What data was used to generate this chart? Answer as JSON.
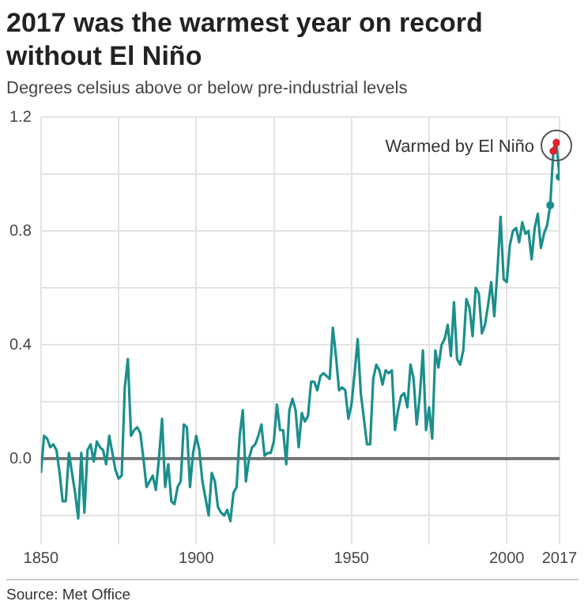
{
  "chart_data": {
    "type": "line",
    "title": "2017 was the warmest year on record without El Niño",
    "subtitle": "Degrees celsius above or below pre-industrial levels",
    "x": [
      1850,
      1851,
      1852,
      1853,
      1854,
      1855,
      1856,
      1857,
      1858,
      1859,
      1860,
      1861,
      1862,
      1863,
      1864,
      1865,
      1866,
      1867,
      1868,
      1869,
      1870,
      1871,
      1872,
      1873,
      1874,
      1875,
      1876,
      1877,
      1878,
      1879,
      1880,
      1881,
      1882,
      1883,
      1884,
      1885,
      1886,
      1887,
      1888,
      1889,
      1890,
      1891,
      1892,
      1893,
      1894,
      1895,
      1896,
      1897,
      1898,
      1899,
      1900,
      1901,
      1902,
      1903,
      1904,
      1905,
      1906,
      1907,
      1908,
      1909,
      1910,
      1911,
      1912,
      1913,
      1914,
      1915,
      1916,
      1917,
      1918,
      1919,
      1920,
      1921,
      1922,
      1923,
      1924,
      1925,
      1926,
      1927,
      1928,
      1929,
      1930,
      1931,
      1932,
      1933,
      1934,
      1935,
      1936,
      1937,
      1938,
      1939,
      1940,
      1941,
      1942,
      1943,
      1944,
      1945,
      1946,
      1947,
      1948,
      1949,
      1950,
      1951,
      1952,
      1953,
      1954,
      1955,
      1956,
      1957,
      1958,
      1959,
      1960,
      1961,
      1962,
      1963,
      1964,
      1965,
      1966,
      1967,
      1968,
      1969,
      1970,
      1971,
      1972,
      1973,
      1974,
      1975,
      1976,
      1977,
      1978,
      1979,
      1980,
      1981,
      1982,
      1983,
      1984,
      1985,
      1986,
      1987,
      1988,
      1989,
      1990,
      1991,
      1992,
      1993,
      1994,
      1995,
      1996,
      1997,
      1998,
      1999,
      2000,
      2001,
      2002,
      2003,
      2004,
      2005,
      2006,
      2007,
      2008,
      2009,
      2010,
      2011,
      2012,
      2013,
      2014,
      2015,
      2016,
      2017
    ],
    "series": [
      {
        "color": "#1b8f8c",
        "marker": "none",
        "values": [
          -0.05,
          0.08,
          0.07,
          0.04,
          0.05,
          0.03,
          -0.05,
          -0.15,
          -0.15,
          0.02,
          -0.05,
          -0.12,
          -0.21,
          0.02,
          -0.19,
          0.03,
          0.05,
          -0.01,
          0.06,
          0.04,
          0.03,
          -0.02,
          0.08,
          0.02,
          -0.04,
          -0.07,
          -0.06,
          0.25,
          0.35,
          0.08,
          0.1,
          0.11,
          0.09,
          0.0,
          -0.1,
          -0.08,
          -0.06,
          -0.11,
          0.0,
          0.14,
          -0.1,
          -0.02,
          -0.15,
          -0.16,
          -0.1,
          -0.08,
          0.12,
          0.11,
          -0.1,
          0.02,
          0.08,
          0.03,
          -0.08,
          -0.14,
          -0.2,
          -0.05,
          -0.08,
          -0.17,
          -0.19,
          -0.2,
          -0.18,
          -0.22,
          -0.12,
          -0.1,
          0.08,
          0.17,
          -0.08,
          0.0,
          0.04,
          0.05,
          0.08,
          0.12,
          0.01,
          0.02,
          0.02,
          0.06,
          0.19,
          0.1,
          0.1,
          -0.02,
          0.17,
          0.21,
          0.17,
          0.04,
          0.16,
          0.13,
          0.15,
          0.27,
          0.27,
          0.24,
          0.29,
          0.3,
          0.29,
          0.28,
          0.46,
          0.36,
          0.24,
          0.25,
          0.24,
          0.14,
          0.19,
          0.3,
          0.42,
          0.23,
          0.14,
          0.05,
          0.05,
          0.28,
          0.33,
          0.31,
          0.26,
          0.31,
          0.3,
          0.31,
          0.1,
          0.17,
          0.22,
          0.23,
          0.18,
          0.33,
          0.28,
          0.12,
          0.22,
          0.38,
          0.1,
          0.18,
          0.07,
          0.38,
          0.32,
          0.4,
          0.42,
          0.47,
          0.36,
          0.55,
          0.35,
          0.33,
          0.38,
          0.56,
          0.53,
          0.43,
          0.6,
          0.58,
          0.44,
          0.47,
          0.54,
          0.62,
          0.5,
          0.66,
          0.85,
          0.63,
          0.62,
          0.75,
          0.8,
          0.81,
          0.76,
          0.83,
          0.79,
          0.8,
          0.7,
          0.81,
          0.86,
          0.74,
          0.79,
          0.82,
          0.89,
          1.08,
          1.11,
          0.99
        ]
      },
      {
        "type": "scatter",
        "color": "#1b8f8c",
        "marker": "circle",
        "x": [
          2014,
          2017
        ],
        "values": [
          0.89,
          0.99
        ]
      },
      {
        "type": "line",
        "color": "#e0202a",
        "marker": "circle",
        "x": [
          2015,
          2016
        ],
        "values": [
          1.08,
          1.11
        ]
      }
    ],
    "xlim": [
      1850,
      2017
    ],
    "xticks": [
      1850,
      {
        "value": 1875,
        "label": null
      },
      1900,
      {
        "value": 1925,
        "label": null
      },
      1950,
      {
        "value": 1975,
        "label": null
      },
      2000,
      2017
    ],
    "ylim": [
      -0.3,
      1.2
    ],
    "yticks": [
      {
        "value": -0.2,
        "label": null
      },
      {
        "value": 0,
        "label": "0.0"
      },
      {
        "value": 0.2,
        "label": null
      },
      0.4,
      {
        "value": 0.6,
        "label": null
      },
      0.8,
      {
        "value": 1.0,
        "label": null
      },
      1.2
    ],
    "grid": true,
    "legend": false,
    "ref_lines": [
      {
        "axis": "y",
        "value": 0,
        "color": "#777777"
      }
    ],
    "annotations": [
      {
        "text": "Warmed by El Niño",
        "x": 2016,
        "y": 1.11
      },
      "Source: Met Office"
    ]
  }
}
